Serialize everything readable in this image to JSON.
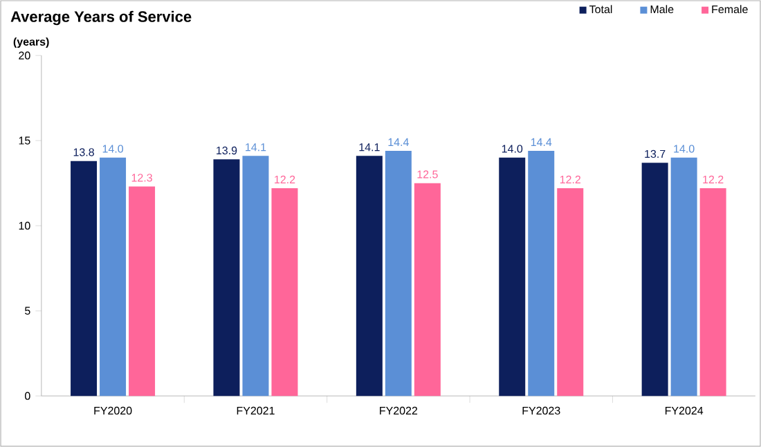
{
  "chart_data": {
    "type": "bar",
    "title": "Average Years of Service",
    "ylabel": "(years)",
    "categories": [
      "FY2020",
      "FY2021",
      "FY2022",
      "FY2023",
      "FY2024"
    ],
    "series": [
      {
        "name": "Total",
        "color": "#0d1f5c",
        "values": [
          13.8,
          13.9,
          14.1,
          14.0,
          13.7
        ],
        "value_labels": [
          "13.8",
          "13.9",
          "14.1",
          "14.0",
          "13.7"
        ]
      },
      {
        "name": "Male",
        "color": "#5b8fd6",
        "values": [
          14.0,
          14.1,
          14.4,
          14.4,
          14.0
        ],
        "value_labels": [
          "14.0",
          "14.1",
          "14.4",
          "14.4",
          "14.0"
        ]
      },
      {
        "name": "Female",
        "color": "#ff6699",
        "values": [
          12.3,
          12.2,
          12.5,
          12.2,
          12.2
        ],
        "value_labels": [
          "12.3",
          "12.2",
          "12.5",
          "12.2",
          "12.2"
        ]
      }
    ],
    "ylim": [
      0,
      20
    ],
    "yticks": [
      0,
      5,
      10,
      15,
      20
    ],
    "legend": "top right",
    "grid": false
  }
}
